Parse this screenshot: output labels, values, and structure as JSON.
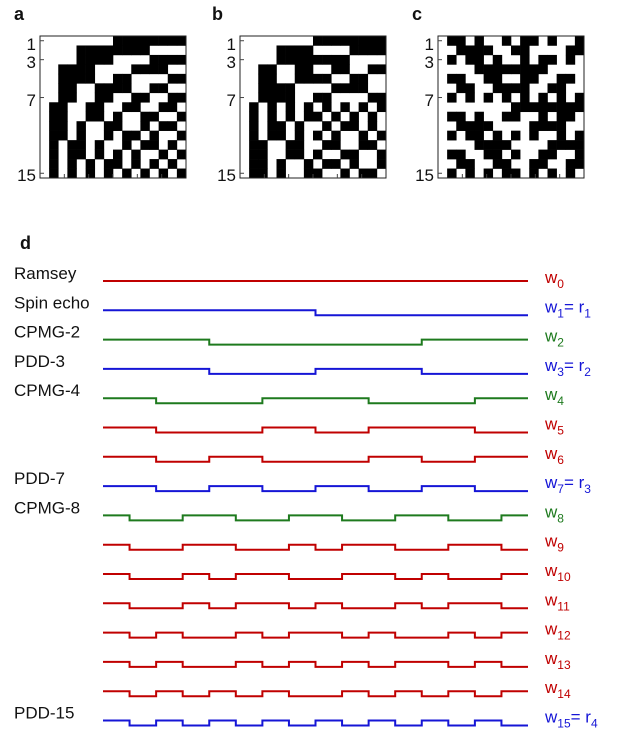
{
  "panels": [
    {
      "letter": "a",
      "tick_labels": [
        "1",
        "3",
        "7",
        "15"
      ]
    },
    {
      "letter": "b",
      "tick_labels": [
        "1",
        "3",
        "7",
        "15"
      ]
    },
    {
      "letter": "c",
      "tick_labels": [
        "1",
        "3",
        "7",
        "15"
      ]
    }
  ],
  "panel_d": {
    "letter": "d",
    "rows": [
      {
        "name": "Ramsey",
        "label": "w",
        "sub": "0",
        "eq": "",
        "eq_sub": "",
        "color": "#c00000",
        "k": 0
      },
      {
        "name": "Spin echo",
        "label": "w",
        "sub": "1",
        "eq": "= r",
        "eq_sub": "1",
        "color": "#1515d6",
        "k": 1
      },
      {
        "name": "CPMG-2",
        "label": "w",
        "sub": "2",
        "eq": "",
        "eq_sub": "",
        "color": "#1e7a1e",
        "k": 2
      },
      {
        "name": "PDD-3",
        "label": "w",
        "sub": "3",
        "eq": "= r",
        "eq_sub": "2",
        "color": "#1515d6",
        "k": 3
      },
      {
        "name": "CPMG-4",
        "label": "w",
        "sub": "4",
        "eq": "",
        "eq_sub": "",
        "color": "#1e7a1e",
        "k": 4
      },
      {
        "name": "",
        "label": "w",
        "sub": "5",
        "eq": "",
        "eq_sub": "",
        "color": "#c00000",
        "k": 5
      },
      {
        "name": "",
        "label": "w",
        "sub": "6",
        "eq": "",
        "eq_sub": "",
        "color": "#c00000",
        "k": 6
      },
      {
        "name": "PDD-7",
        "label": "w",
        "sub": "7",
        "eq": "= r",
        "eq_sub": "3",
        "color": "#1515d6",
        "k": 7
      },
      {
        "name": "CPMG-8",
        "label": "w",
        "sub": "8",
        "eq": "",
        "eq_sub": "",
        "color": "#1e7a1e",
        "k": 8
      },
      {
        "name": "",
        "label": "w",
        "sub": "9",
        "eq": "",
        "eq_sub": "",
        "color": "#c00000",
        "k": 9
      },
      {
        "name": "",
        "label": "w",
        "sub": "10",
        "eq": "",
        "eq_sub": "",
        "color": "#c00000",
        "k": 10
      },
      {
        "name": "",
        "label": "w",
        "sub": "11",
        "eq": "",
        "eq_sub": "",
        "color": "#c00000",
        "k": 11
      },
      {
        "name": "",
        "label": "w",
        "sub": "12",
        "eq": "",
        "eq_sub": "",
        "color": "#c00000",
        "k": 12
      },
      {
        "name": "",
        "label": "w",
        "sub": "13",
        "eq": "",
        "eq_sub": "",
        "color": "#c00000",
        "k": 13
      },
      {
        "name": "",
        "label": "w",
        "sub": "14",
        "eq": "",
        "eq_sub": "",
        "color": "#c00000",
        "k": 14
      },
      {
        "name": "PDD-15",
        "label": "w",
        "sub": "15",
        "eq": "= r",
        "eq_sub": "4",
        "color": "#1515d6",
        "k": 15
      }
    ]
  }
}
